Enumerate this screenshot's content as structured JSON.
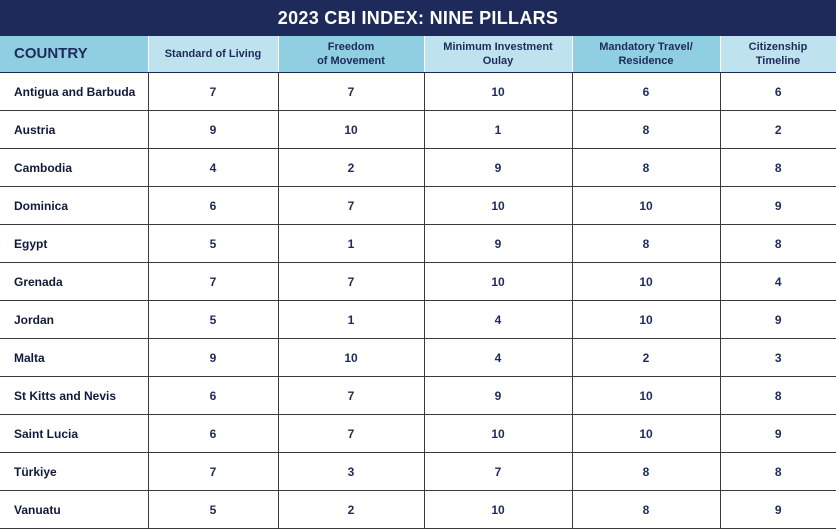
{
  "title": "2023 CBI INDEX: NINE PILLARS",
  "columns": [
    {
      "label": "COUNTRY"
    },
    {
      "label": "Standard of Living"
    },
    {
      "label": "Freedom\nof Movement"
    },
    {
      "label": "Minimum Investment\nOulay"
    },
    {
      "label": "Mandatory Travel/\nResidence"
    },
    {
      "label": "Citizenship\nTimeline"
    }
  ],
  "rows": [
    {
      "country": "Antigua and Barbuda",
      "values": [
        "7",
        "7",
        "10",
        "6",
        "6"
      ]
    },
    {
      "country": "Austria",
      "values": [
        "9",
        "10",
        "1",
        "8",
        "2"
      ]
    },
    {
      "country": "Cambodia",
      "values": [
        "4",
        "2",
        "9",
        "8",
        "8"
      ]
    },
    {
      "country": "Dominica",
      "values": [
        "6",
        "7",
        "10",
        "10",
        "9"
      ]
    },
    {
      "country": "Egypt",
      "values": [
        "5",
        "1",
        "9",
        "8",
        "8"
      ]
    },
    {
      "country": "Grenada",
      "values": [
        "7",
        "7",
        "10",
        "10",
        "4"
      ]
    },
    {
      "country": "Jordan",
      "values": [
        "5",
        "1",
        "4",
        "10",
        "9"
      ]
    },
    {
      "country": "Malta",
      "values": [
        "9",
        "10",
        "4",
        "2",
        "3"
      ]
    },
    {
      "country": "St Kitts and Nevis",
      "values": [
        "6",
        "7",
        "9",
        "10",
        "8"
      ]
    },
    {
      "country": "Saint Lucia",
      "values": [
        "6",
        "7",
        "10",
        "10",
        "9"
      ]
    },
    {
      "country": "Türkiye",
      "values": [
        "7",
        "3",
        "7",
        "8",
        "8"
      ]
    },
    {
      "country": "Vanuatu",
      "values": [
        "5",
        "2",
        "10",
        "8",
        "9"
      ]
    }
  ],
  "colors": {
    "title_bg": "#1e2a5a",
    "header_shade_a": "#8fcfe1",
    "header_shade_b": "#bfe3ee",
    "text": "#1e2a5a"
  }
}
